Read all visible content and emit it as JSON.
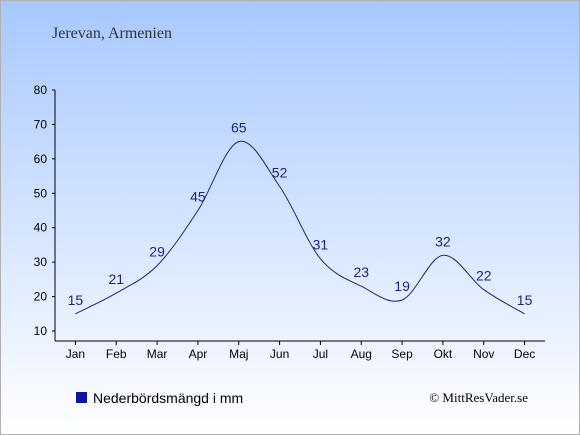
{
  "chart_data": {
    "type": "line",
    "title": "Jerevan, Armenien",
    "categories": [
      "Jan",
      "Feb",
      "Mar",
      "Apr",
      "Maj",
      "Jun",
      "Jul",
      "Aug",
      "Sep",
      "Okt",
      "Nov",
      "Dec"
    ],
    "series": [
      {
        "name": "Nederbördsmängd i mm",
        "values": [
          15,
          21,
          29,
          45,
          65,
          52,
          31,
          23,
          19,
          32,
          22,
          15
        ],
        "color": "#1a237e"
      }
    ],
    "ylim": [
      10,
      80
    ],
    "yticks": [
      10,
      20,
      30,
      40,
      50,
      60,
      70,
      80
    ],
    "grid": false,
    "legend_position": "bottom-left"
  },
  "legend": {
    "label": "Nederbördsmängd i mm",
    "color": "#0a14a0"
  },
  "copyright": "© MittResVader.se",
  "colors": {
    "background_top": "#a8c8ff",
    "background_bottom": "#ffffff",
    "line": "#1a237e"
  }
}
